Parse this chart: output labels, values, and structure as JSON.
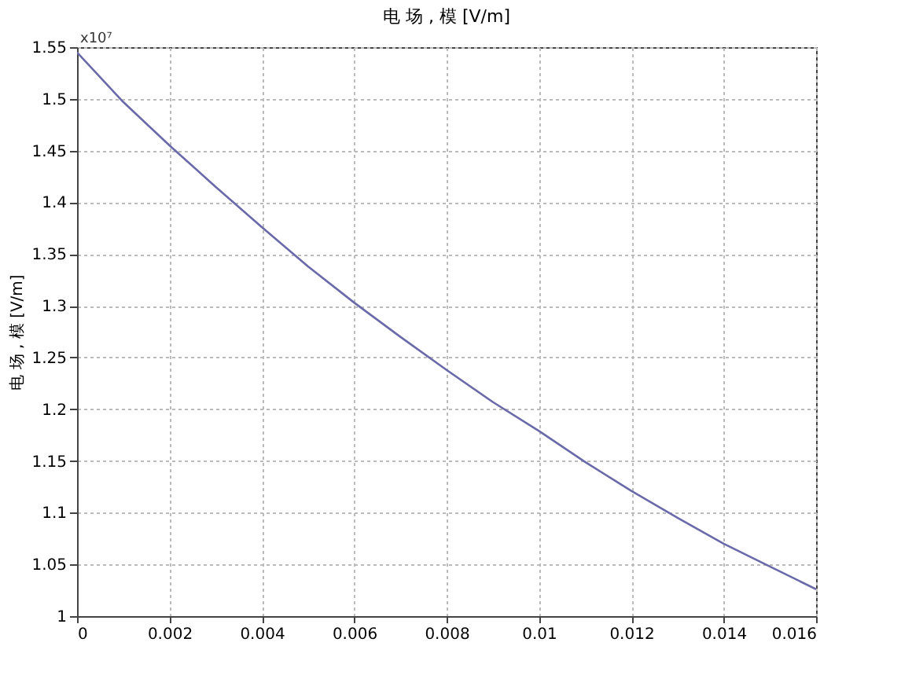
{
  "chart_data": {
    "type": "line",
    "title": "电 场 , 模 [V/m]",
    "ylabel": "电 场 , 模 [V/m]",
    "annotations": [
      "x10⁷"
    ],
    "x": [
      0,
      0.001,
      0.002,
      0.003,
      0.004,
      0.005,
      0.006,
      0.007,
      0.008,
      0.009,
      0.01,
      0.011,
      0.012,
      0.013,
      0.014,
      0.015,
      0.016
    ],
    "series": [
      {
        "color": "#6a6aaa",
        "values": [
          1.545,
          1.497,
          1.455,
          1.415,
          1.376,
          1.338,
          1.303,
          1.27,
          1.238,
          1.207,
          1.179,
          1.149,
          1.121,
          1.095,
          1.07,
          1.048,
          1.026
        ]
      }
    ],
    "xlim": [
      0,
      0.016
    ],
    "xticks": [
      0,
      0.002,
      0.004,
      0.006,
      0.008,
      0.01,
      0.012,
      0.014,
      0.016
    ],
    "ylim": [
      1,
      1.55
    ],
    "yticks": [
      1,
      1.05,
      1.1,
      1.15,
      1.2,
      1.25,
      1.3,
      1.35,
      1.4,
      1.45,
      1.5,
      1.55
    ],
    "grid": true,
    "line_style": "solid",
    "marker": "none"
  }
}
